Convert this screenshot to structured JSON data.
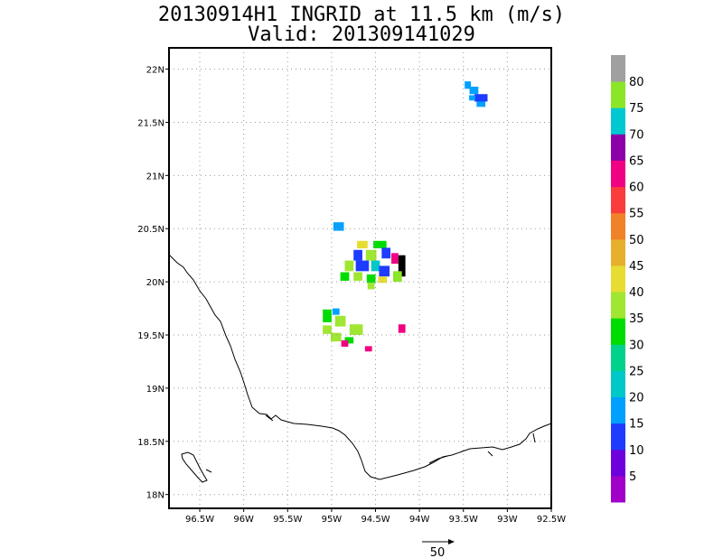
{
  "chart_data": {
    "type": "heatmap",
    "title": "20130914H1 INGRID at 11.5 km (m/s)",
    "subtitle": "Valid: 201309141029",
    "x_ticks": [
      "96.5W",
      "96W",
      "95.5W",
      "95W",
      "94.5W",
      "94W",
      "93.5W",
      "93W",
      "92.5W"
    ],
    "x_tick_values": [
      -96.5,
      -96,
      -95.5,
      -95,
      -94.5,
      -94,
      -93.5,
      -93,
      -92.5
    ],
    "y_ticks": [
      "18N",
      "18.5N",
      "19N",
      "19.5N",
      "20N",
      "20.5N",
      "21N",
      "21.5N",
      "22N"
    ],
    "y_tick_values": [
      18,
      18.5,
      19,
      19.5,
      20,
      20.5,
      21,
      21.5,
      22
    ],
    "xlim": [
      -96.85,
      -92.5
    ],
    "ylim": [
      17.87,
      22.2
    ],
    "grid": true,
    "colorbar": {
      "labels": [
        "5",
        "10",
        "15",
        "20",
        "25",
        "30",
        "35",
        "40",
        "45",
        "50",
        "55",
        "60",
        "65",
        "70",
        "75",
        "80"
      ],
      "colors": [
        "#a000c8",
        "#6e00dc",
        "#1e3cff",
        "#00a0ff",
        "#00c8c8",
        "#00d28c",
        "#00dc00",
        "#a0e632",
        "#e6dc32",
        "#e6af2d",
        "#f08228",
        "#fa3c3c",
        "#f00082",
        "#8c00aa",
        "#00c8d2",
        "#8ce628",
        "#a0a0a0"
      ]
    },
    "reference_vector": {
      "label": "50",
      "speed": 50
    },
    "cells": [
      {
        "lon": -93.45,
        "lat": 21.85,
        "v": 3,
        "w": 0.07,
        "h": 0.07
      },
      {
        "lon": -93.38,
        "lat": 21.8,
        "v": 3,
        "w": 0.1,
        "h": 0.07
      },
      {
        "lon": -93.3,
        "lat": 21.73,
        "v": 2,
        "w": 0.15,
        "h": 0.07
      },
      {
        "lon": -93.4,
        "lat": 21.73,
        "v": 3,
        "w": 0.07,
        "h": 0.05
      },
      {
        "lon": -93.3,
        "lat": 21.67,
        "v": 3,
        "w": 0.1,
        "h": 0.05
      },
      {
        "lon": -94.92,
        "lat": 20.52,
        "v": 3,
        "w": 0.12,
        "h": 0.08
      },
      {
        "lon": -94.65,
        "lat": 20.35,
        "v": 8,
        "w": 0.12,
        "h": 0.07
      },
      {
        "lon": -94.45,
        "lat": 20.35,
        "v": 6,
        "w": 0.15,
        "h": 0.07
      },
      {
        "lon": -94.7,
        "lat": 20.25,
        "v": 2,
        "w": 0.1,
        "h": 0.1
      },
      {
        "lon": -94.55,
        "lat": 20.25,
        "v": 7,
        "w": 0.12,
        "h": 0.1
      },
      {
        "lon": -94.38,
        "lat": 20.27,
        "v": 2,
        "w": 0.1,
        "h": 0.1
      },
      {
        "lon": -94.28,
        "lat": 20.22,
        "v": 12,
        "w": 0.08,
        "h": 0.1
      },
      {
        "lon": -94.2,
        "lat": 20.15,
        "v": 17,
        "w": 0.08,
        "h": 0.2
      },
      {
        "lon": -94.25,
        "lat": 20.05,
        "v": 15,
        "w": 0.1,
        "h": 0.1
      },
      {
        "lon": -94.8,
        "lat": 20.15,
        "v": 7,
        "w": 0.1,
        "h": 0.1
      },
      {
        "lon": -94.65,
        "lat": 20.15,
        "v": 2,
        "w": 0.15,
        "h": 0.1
      },
      {
        "lon": -94.5,
        "lat": 20.15,
        "v": 4,
        "w": 0.1,
        "h": 0.1
      },
      {
        "lon": -94.4,
        "lat": 20.1,
        "v": 2,
        "w": 0.12,
        "h": 0.1
      },
      {
        "lon": -94.85,
        "lat": 20.05,
        "v": 6,
        "w": 0.1,
        "h": 0.08
      },
      {
        "lon": -94.7,
        "lat": 20.05,
        "v": 7,
        "w": 0.1,
        "h": 0.08
      },
      {
        "lon": -94.55,
        "lat": 20.03,
        "v": 6,
        "w": 0.1,
        "h": 0.08
      },
      {
        "lon": -94.42,
        "lat": 20.02,
        "v": 8,
        "w": 0.1,
        "h": 0.06
      },
      {
        "lon": -94.55,
        "lat": 19.96,
        "v": 7,
        "w": 0.08,
        "h": 0.06
      },
      {
        "lon": -95.05,
        "lat": 19.68,
        "v": 6,
        "w": 0.1,
        "h": 0.12
      },
      {
        "lon": -94.95,
        "lat": 19.72,
        "v": 3,
        "w": 0.08,
        "h": 0.06
      },
      {
        "lon": -94.9,
        "lat": 19.63,
        "v": 7,
        "w": 0.12,
        "h": 0.1
      },
      {
        "lon": -95.05,
        "lat": 19.55,
        "v": 7,
        "w": 0.1,
        "h": 0.08
      },
      {
        "lon": -94.95,
        "lat": 19.48,
        "v": 7,
        "w": 0.12,
        "h": 0.08
      },
      {
        "lon": -94.72,
        "lat": 19.55,
        "v": 7,
        "w": 0.15,
        "h": 0.1
      },
      {
        "lon": -94.8,
        "lat": 19.45,
        "v": 6,
        "w": 0.1,
        "h": 0.06
      },
      {
        "lon": -94.85,
        "lat": 19.42,
        "v": 12,
        "w": 0.08,
        "h": 0.06
      },
      {
        "lon": -94.2,
        "lat": 19.56,
        "v": 12,
        "w": 0.08,
        "h": 0.08
      },
      {
        "lon": -94.58,
        "lat": 19.37,
        "v": 12,
        "w": 0.08,
        "h": 0.05
      }
    ]
  }
}
